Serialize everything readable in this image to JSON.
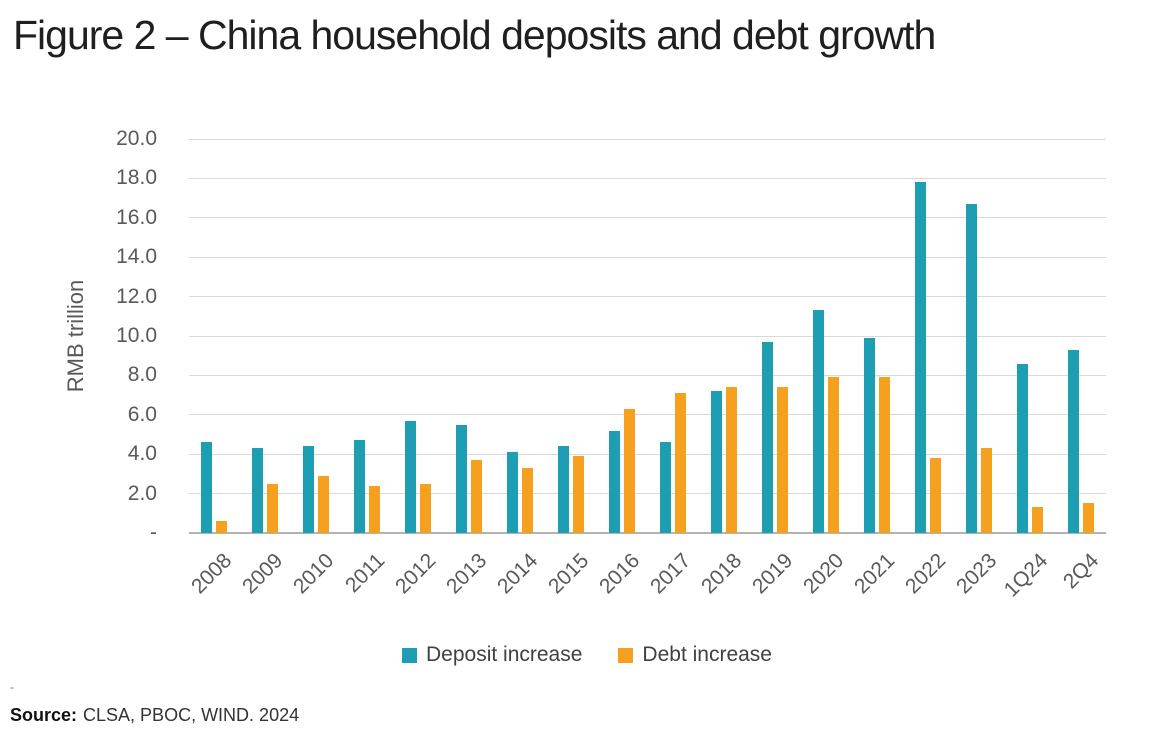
{
  "title": "Figure 2 – China household deposits and debt growth",
  "footnote_mark": "-",
  "source": {
    "label": "Source:",
    "text": "CLSA, PBOC, WIND. 2024"
  },
  "chart_data": {
    "type": "bar",
    "title": "Figure 2 – China household deposits and debt growth",
    "xlabel": "",
    "ylabel": "RMB trillion",
    "ylim": [
      0,
      20
    ],
    "ytick_step": 2,
    "ytick_labels_bottom_to_top": [
      "-",
      "2.0",
      "4.0",
      "6.0",
      "8.0",
      "10.0",
      "12.0",
      "14.0",
      "16.0",
      "18.0",
      "20.0"
    ],
    "grid": true,
    "legend_position": "bottom-center",
    "categories": [
      "2008",
      "2009",
      "2010",
      "2011",
      "2012",
      "2013",
      "2014",
      "2015",
      "2016",
      "2017",
      "2018",
      "2019",
      "2020",
      "2021",
      "2022",
      "2023",
      "1Q24",
      "2Q4"
    ],
    "series": [
      {
        "name": "Deposit increase",
        "color": "#1d9eb3",
        "values": [
          4.6,
          4.3,
          4.4,
          4.7,
          5.7,
          5.5,
          4.1,
          4.4,
          5.2,
          4.6,
          7.2,
          9.7,
          11.3,
          9.9,
          17.8,
          16.7,
          8.6,
          9.3
        ]
      },
      {
        "name": "Debt increase",
        "color": "#f5a01f",
        "values": [
          0.6,
          2.5,
          2.9,
          2.4,
          2.5,
          3.7,
          3.3,
          3.9,
          6.3,
          7.1,
          7.4,
          7.4,
          7.9,
          7.9,
          3.8,
          4.3,
          1.3,
          1.5
        ]
      }
    ],
    "colors": {
      "grid": "#d9d9d9",
      "axis": "#b3b3b3",
      "tick_text": "#595959",
      "legend_text": "#404040"
    }
  }
}
